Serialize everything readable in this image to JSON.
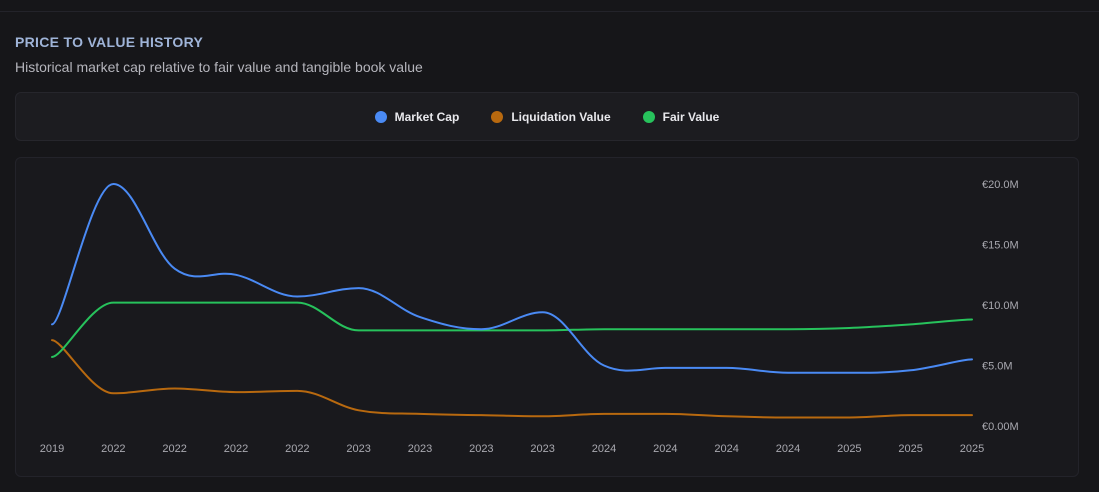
{
  "header": {
    "title": "PRICE TO VALUE HISTORY",
    "subtitle": "Historical market cap relative to fair value and tangible book value"
  },
  "chart_data": {
    "type": "line",
    "x": [
      "2019",
      "2022",
      "2022",
      "2022",
      "2022",
      "2023",
      "2023",
      "2023",
      "2023",
      "2024",
      "2024",
      "2024",
      "2024",
      "2025",
      "2025",
      "2025"
    ],
    "series": [
      {
        "name": "Market Cap",
        "color": "#4a8af4",
        "values": [
          8.4,
          20.0,
          13.0,
          12.5,
          10.7,
          11.4,
          9.0,
          8.0,
          9.4,
          5.0,
          4.8,
          4.8,
          4.4,
          4.4,
          4.6,
          5.5
        ]
      },
      {
        "name": "Liquidation Value",
        "color": "#b8690f",
        "values": [
          7.1,
          2.7,
          3.1,
          2.8,
          2.9,
          1.3,
          1.0,
          0.9,
          0.8,
          1.0,
          1.0,
          0.8,
          0.7,
          0.7,
          0.9,
          0.9
        ]
      },
      {
        "name": "Fair Value",
        "color": "#27c25c",
        "values": [
          5.7,
          10.2,
          10.2,
          10.2,
          10.2,
          7.9,
          7.9,
          7.9,
          7.9,
          8.0,
          8.0,
          8.0,
          8.0,
          8.1,
          8.4,
          8.8
        ]
      }
    ],
    "y_ticks": [
      {
        "value": 20,
        "label": "€20.0M"
      },
      {
        "value": 15,
        "label": "€15.0M"
      },
      {
        "value": 10,
        "label": "€10.0M"
      },
      {
        "value": 5,
        "label": "€5.0M"
      },
      {
        "value": 0,
        "label": "€0.00M"
      }
    ],
    "ylim": [
      0,
      20
    ],
    "ylabel": "",
    "xlabel": "",
    "grid": false,
    "legend_position": "top-center"
  }
}
